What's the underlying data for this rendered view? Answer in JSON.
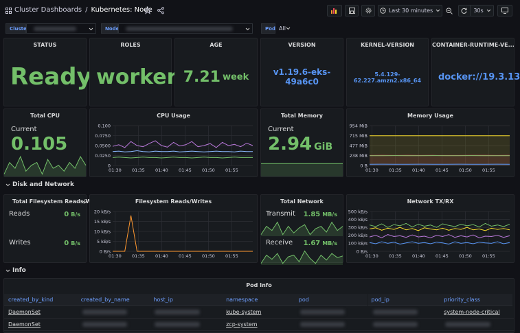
{
  "header": {
    "breadcrumb_parent": "Cluster Dashboards",
    "separator": "/",
    "title": "Kubernetes: Node",
    "time_range": "Last 30 minutes",
    "refresh": "30s"
  },
  "variables": [
    {
      "label": "Cluster"
    },
    {
      "label": "Node"
    },
    {
      "label": "Pod",
      "value": "All"
    }
  ],
  "panels": [
    {
      "type": "stat",
      "title": "STATUS",
      "value": "Ready",
      "color": "#73bf69"
    },
    {
      "type": "stat",
      "title": "ROLES",
      "value": "worker",
      "color": "#73bf69"
    },
    {
      "type": "stat",
      "title": "AGE",
      "value": 7.21,
      "unit": "week",
      "color": "#73bf69"
    },
    {
      "type": "stat",
      "title": "VERSION",
      "value": "v1.19.6-eks-49a6c0",
      "color": "#5794f2"
    },
    {
      "type": "stat",
      "title": "KERNEL-VERSION",
      "value": "5.4.129-62.227.amzn2.x86_64",
      "color": "#5794f2"
    },
    {
      "type": "stat",
      "title": "CONTAINER-RUNTIME-VE...",
      "value": "docker://19.3.13",
      "color": "#5794f2"
    },
    {
      "type": "current",
      "title": "Total CPU",
      "label": "Current",
      "value": 0.105,
      "color": "#73bf69",
      "spark": [
        0.09,
        0.11,
        0.1,
        0.12,
        0.095,
        0.105,
        0.11,
        0.09,
        0.115,
        0.1,
        0.105,
        0.095,
        0.11,
        0.1,
        0.12,
        0.105
      ]
    },
    {
      "type": "chart",
      "title": "CPU Usage",
      "ylim": [
        0,
        0.1
      ],
      "yticks": [
        0,
        {
          "value": 0.025,
          "label": "0.0250"
        },
        {
          "value": 0.05,
          "label": "0.0500"
        },
        {
          "value": 0.075,
          "label": "0.0750"
        },
        {
          "value": 0.1,
          "label": "0.100"
        }
      ],
      "xticks": [
        "01:30",
        "01:35",
        "01:40",
        "01:45",
        "01:50",
        "01:55"
      ],
      "series": [
        {
          "color": "#b877d9",
          "values": [
            0.048,
            0.052,
            0.045,
            0.06,
            0.05,
            0.047,
            0.055,
            0.062,
            0.05,
            0.046,
            0.058,
            0.049,
            0.052,
            0.06,
            0.047,
            0.05,
            0.055,
            0.045,
            0.058,
            0.05,
            0.053,
            0.047,
            0.056,
            0.05
          ]
        },
        {
          "color": "#8ab8ff",
          "values": [
            0.035,
            0.036,
            0.034,
            0.035,
            0.037,
            0.035,
            0.034,
            0.036,
            0.035,
            0.035,
            0.036,
            0.034,
            0.035,
            0.036,
            0.035,
            0.034,
            0.035,
            0.036,
            0.035,
            0.035,
            0.034,
            0.036,
            0.035,
            0.035
          ]
        },
        {
          "color": "#73bf69",
          "values": [
            0.02,
            0.021,
            0.02,
            0.019,
            0.02,
            0.021,
            0.02,
            0.02,
            0.019,
            0.02,
            0.021,
            0.02,
            0.02,
            0.019,
            0.02,
            0.021,
            0.02,
            0.02,
            0.019,
            0.02,
            0.021,
            0.02,
            0.02,
            0.02
          ]
        }
      ]
    },
    {
      "type": "current",
      "title": "Total Memory",
      "label": "Current",
      "value": 2.94,
      "unit": "GiB",
      "color": "#73bf69",
      "spark": [
        2.94,
        2.94,
        2.94,
        2.94,
        2.94,
        2.94,
        2.94,
        2.94
      ]
    },
    {
      "type": "chart",
      "title": "Memory Usage",
      "ylim": [
        0,
        954
      ],
      "yticks": [
        {
          "value": 0,
          "label": "0 B"
        },
        {
          "value": 238,
          "label": "238 MiB"
        },
        {
          "value": 477,
          "label": "477 MiB"
        },
        {
          "value": 715,
          "label": "715 MiB"
        },
        {
          "value": 954,
          "label": "954 MiB"
        }
      ],
      "xticks": [
        "01:30",
        "01:35",
        "01:40",
        "01:45",
        "01:50",
        "01:55"
      ],
      "series": [
        {
          "color": "#fade2a",
          "fill": true,
          "values": [
            712,
            710,
            713,
            711,
            712,
            710,
            712,
            713,
            711,
            712,
            710,
            712
          ]
        },
        {
          "color": "#f2495c",
          "fill": true,
          "values": [
            240,
            241,
            240,
            242,
            240,
            241,
            240,
            240,
            241,
            242,
            240,
            241
          ]
        },
        {
          "color": "#73bf69",
          "values": [
            236,
            236,
            237,
            236,
            236,
            237,
            236,
            236,
            237,
            236,
            236,
            236
          ]
        },
        {
          "color": "#5794f2",
          "fill": true,
          "values": [
            30,
            31,
            30,
            30,
            31,
            30,
            30,
            31,
            30,
            30,
            31,
            30
          ]
        }
      ]
    },
    {
      "type": "pair",
      "title": "Total Filesystem Reads/W...",
      "items": [
        {
          "label": "Reads",
          "value": 0,
          "unit": "B/s"
        },
        {
          "label": "Writes",
          "value": 0,
          "unit": "B/s"
        }
      ]
    },
    {
      "type": "chart",
      "title": "Filesystem Reads/Writes",
      "ylim": [
        0,
        20
      ],
      "yticks": [
        {
          "value": 0,
          "label": "0 B/s"
        },
        {
          "value": 5,
          "label": "5 kB/s"
        },
        {
          "value": 10,
          "label": "10 kB/s"
        },
        {
          "value": 15,
          "label": "15 kB/s"
        },
        {
          "value": 20,
          "label": "20 kB/s"
        }
      ],
      "xticks": [
        "01:30",
        "01:35",
        "01:40",
        "01:45",
        "01:50",
        "01:55"
      ],
      "series": [
        {
          "color": "#ff9830",
          "values": [
            0,
            0,
            0,
            18,
            0,
            0,
            0,
            0,
            0,
            0,
            0,
            0,
            0,
            0,
            0,
            0,
            0,
            0,
            0,
            0,
            0,
            0,
            0,
            0
          ]
        }
      ]
    },
    {
      "type": "pair",
      "title": "Total Network",
      "items": [
        {
          "label": "Transmit",
          "value": 1.85,
          "unit": "MB/s",
          "spark": [
            1.8,
            1.9,
            1.85,
            1.95,
            1.8,
            1.9,
            1.82,
            1.88,
            1.92,
            1.8,
            1.87,
            1.9,
            1.83,
            1.95,
            1.85,
            1.9
          ]
        },
        {
          "label": "Receive",
          "value": 1.67,
          "unit": "MB/s",
          "spark": [
            1.6,
            1.7,
            1.65,
            1.72,
            1.6,
            1.68,
            1.7,
            1.62,
            1.75,
            1.66,
            1.6,
            1.7,
            1.64,
            1.72,
            1.67,
            1.69
          ]
        }
      ]
    },
    {
      "type": "chart",
      "title": "Network TX/RX",
      "ylim": [
        0,
        500
      ],
      "yticks": [
        {
          "value": 0,
          "label": "0 B/s"
        },
        {
          "value": 100,
          "label": "100 kB/s"
        },
        {
          "value": 200,
          "label": "200 kB/s"
        },
        {
          "value": 300,
          "label": "300 kB/s"
        },
        {
          "value": 400,
          "label": "400 kB/s"
        },
        {
          "value": 500,
          "label": "500 kB/s"
        }
      ],
      "xticks": [
        "01:30",
        "01:35",
        "01:40",
        "01:45",
        "01:50",
        "01:55"
      ],
      "series": [
        {
          "color": "#73bf69",
          "values": [
            330,
            310,
            345,
            300,
            335,
            320,
            350,
            305,
            340,
            315,
            330,
            300,
            345,
            325,
            310,
            340,
            320,
            335,
            305,
            350,
            315,
            330,
            310,
            340
          ]
        },
        {
          "color": "#fade2a",
          "values": [
            280,
            295,
            265,
            290,
            275,
            300,
            270,
            285,
            260,
            295,
            280,
            270,
            290,
            265,
            285,
            275,
            300,
            270,
            280,
            260,
            290,
            275,
            285,
            270
          ]
        },
        {
          "color": "#b877d9",
          "values": [
            180,
            200,
            170,
            210,
            185,
            195,
            175,
            205,
            180,
            190,
            170,
            200,
            185,
            210,
            175,
            195,
            180,
            205,
            170,
            190,
            185,
            200,
            175,
            195
          ]
        },
        {
          "color": "#5794f2",
          "values": [
            110,
            95,
            120,
            100,
            115,
            90,
            105,
            120,
            100,
            110,
            95,
            115,
            105,
            90,
            120,
            100,
            110,
            95,
            115,
            105,
            100,
            120,
            95,
            110
          ]
        }
      ]
    }
  ],
  "sections": [
    "Disk and Network",
    "Info"
  ],
  "table": {
    "title": "Pod Info",
    "columns": [
      "created_by_kind",
      "created_by_name",
      "host_ip",
      "namespace",
      "pod",
      "pod_ip",
      "priority_class"
    ],
    "rows": [
      {
        "created_by_kind": "DaemonSet",
        "namespace": "kube-system",
        "priority_class": "system-node-critical"
      },
      {
        "created_by_kind": "DaemonSet",
        "namespace": "zcp-system"
      }
    ]
  }
}
